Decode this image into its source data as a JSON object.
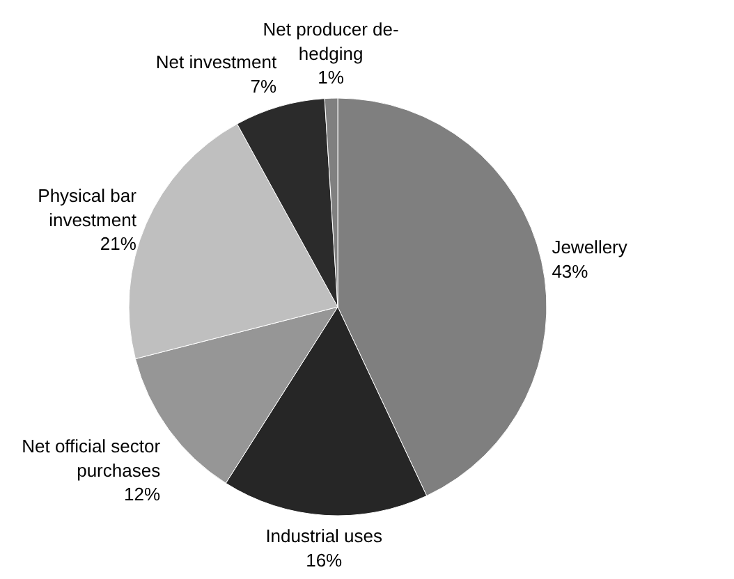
{
  "chart_data": {
    "type": "pie",
    "categories": [
      "Jewellery",
      "Industrial uses",
      "Net official sector purchases",
      "Physical bar investment",
      "Net investment",
      "Net producer de-hedging"
    ],
    "values": [
      43,
      16,
      12,
      21,
      7,
      1
    ],
    "value_labels": [
      "43%",
      "16%",
      "12%",
      "21%",
      "7%",
      "1%"
    ],
    "colors": [
      "#7f7f7f",
      "#262626",
      "#969696",
      "#bfbfbf",
      "#2b2b2b",
      "#808080"
    ]
  }
}
